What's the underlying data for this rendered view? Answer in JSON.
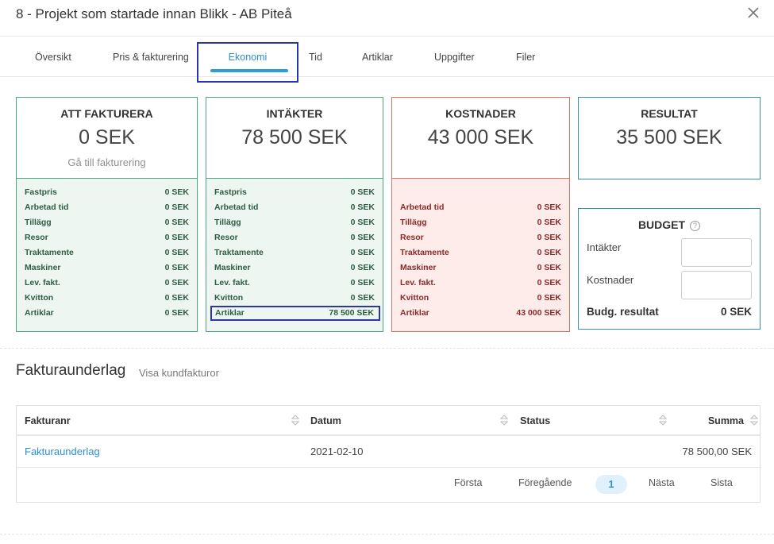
{
  "modal": {
    "title": "8 - Projekt som startade innan Blikk - AB Piteå",
    "close_icon": "close-icon"
  },
  "tabs": [
    {
      "label": "Översikt"
    },
    {
      "label": "Pris & fakturering"
    },
    {
      "label": "Ekonomi",
      "active": true
    },
    {
      "label": "Tid"
    },
    {
      "label": "Artiklar"
    },
    {
      "label": "Uppgifter"
    },
    {
      "label": "Filer"
    }
  ],
  "cards": {
    "fakturera": {
      "label": "ATT FAKTURERA",
      "amount": "0 SEK",
      "link": "Gå till fakturering",
      "rows": [
        {
          "k": "Fastpris",
          "v": "0 SEK"
        },
        {
          "k": "Arbetad tid",
          "v": "0 SEK"
        },
        {
          "k": "Tillägg",
          "v": "0 SEK"
        },
        {
          "k": "Resor",
          "v": "0 SEK"
        },
        {
          "k": "Traktamente",
          "v": "0 SEK"
        },
        {
          "k": "Maskiner",
          "v": "0 SEK"
        },
        {
          "k": "Lev. fakt.",
          "v": "0 SEK"
        },
        {
          "k": "Kvitton",
          "v": "0 SEK"
        },
        {
          "k": "Artiklar",
          "v": "0 SEK"
        }
      ]
    },
    "intakter": {
      "label": "INTÄKTER",
      "amount": "78 500 SEK",
      "rows": [
        {
          "k": "Fastpris",
          "v": "0 SEK"
        },
        {
          "k": "Arbetad tid",
          "v": "0 SEK"
        },
        {
          "k": "Tillägg",
          "v": "0 SEK"
        },
        {
          "k": "Resor",
          "v": "0 SEK"
        },
        {
          "k": "Traktamente",
          "v": "0 SEK"
        },
        {
          "k": "Maskiner",
          "v": "0 SEK"
        },
        {
          "k": "Lev. fakt.",
          "v": "0 SEK"
        },
        {
          "k": "Kvitton",
          "v": "0 SEK"
        },
        {
          "k": "Artiklar",
          "v": "78 500 SEK"
        }
      ]
    },
    "kostnader": {
      "label": "KOSTNADER",
      "amount": "43 000 SEK",
      "rows": [
        {
          "k": "Arbetad tid",
          "v": "0 SEK"
        },
        {
          "k": "Tillägg",
          "v": "0 SEK"
        },
        {
          "k": "Resor",
          "v": "0 SEK"
        },
        {
          "k": "Traktamente",
          "v": "0 SEK"
        },
        {
          "k": "Maskiner",
          "v": "0 SEK"
        },
        {
          "k": "Lev. fakt.",
          "v": "0 SEK"
        },
        {
          "k": "Kvitton",
          "v": "0 SEK"
        },
        {
          "k": "Artiklar",
          "v": "43 000 SEK"
        }
      ]
    },
    "resultat": {
      "label": "RESULTAT",
      "amount": "35 500 SEK"
    }
  },
  "budget": {
    "label": "BUDGET",
    "help_icon": "question-icon",
    "help_glyph": "?",
    "intakter_label": "Intäkter",
    "intakter_value": "",
    "kostnader_label": "Kostnader",
    "kostnader_value": "",
    "result_label": "Budg. resultat",
    "result_value": "0 SEK"
  },
  "fakturaunderlag": {
    "title": "Fakturaunderlag",
    "link": "Visa kundfakturor",
    "columns": [
      "Fakturanr",
      "Datum",
      "Status",
      "Summa"
    ],
    "rows": [
      {
        "nr": "Fakturaunderlag",
        "datum": "2021-02-10",
        "status": "",
        "summa": "78 500,00 SEK"
      }
    ],
    "pager": {
      "first": "Första",
      "prev": "Föregående",
      "page": "1",
      "next": "Nästa",
      "last": "Sista"
    }
  },
  "colors": {
    "accent": "#2a8fd0",
    "green_border": "#4aa67e",
    "green_bg": "#edf6f0",
    "red_border": "#d9735f",
    "red_bg": "#fdecea",
    "result_border": "#3b8fae",
    "focus_outline": "#2b36a8"
  }
}
